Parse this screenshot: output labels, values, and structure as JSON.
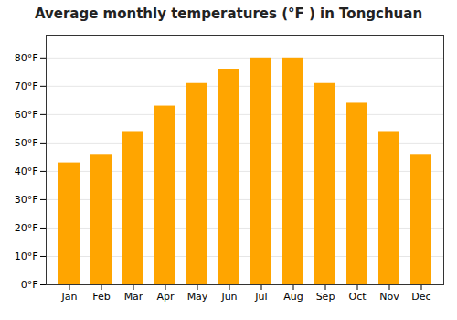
{
  "chart_data": {
    "type": "bar",
    "title": "Average monthly temperatures (°F ) in Tongchuan",
    "categories": [
      "Jan",
      "Feb",
      "Mar",
      "Apr",
      "May",
      "Jun",
      "Jul",
      "Aug",
      "Sep",
      "Oct",
      "Nov",
      "Dec"
    ],
    "values": [
      43,
      46,
      54,
      63,
      71,
      76,
      80,
      80,
      71,
      64,
      54,
      46
    ],
    "color": "#FFA500",
    "ylim": [
      0,
      88
    ],
    "yticks": [
      {
        "value": 0,
        "label": "0°F"
      },
      {
        "value": 10,
        "label": "10°F"
      },
      {
        "value": 20,
        "label": "20°F"
      },
      {
        "value": 30,
        "label": "30°F"
      },
      {
        "value": 40,
        "label": "40°F"
      },
      {
        "value": 50,
        "label": "50°F"
      },
      {
        "value": 60,
        "label": "60°F"
      },
      {
        "value": 70,
        "label": "70°F"
      },
      {
        "value": 80,
        "label": "80°F"
      }
    ],
    "grid": true
  }
}
